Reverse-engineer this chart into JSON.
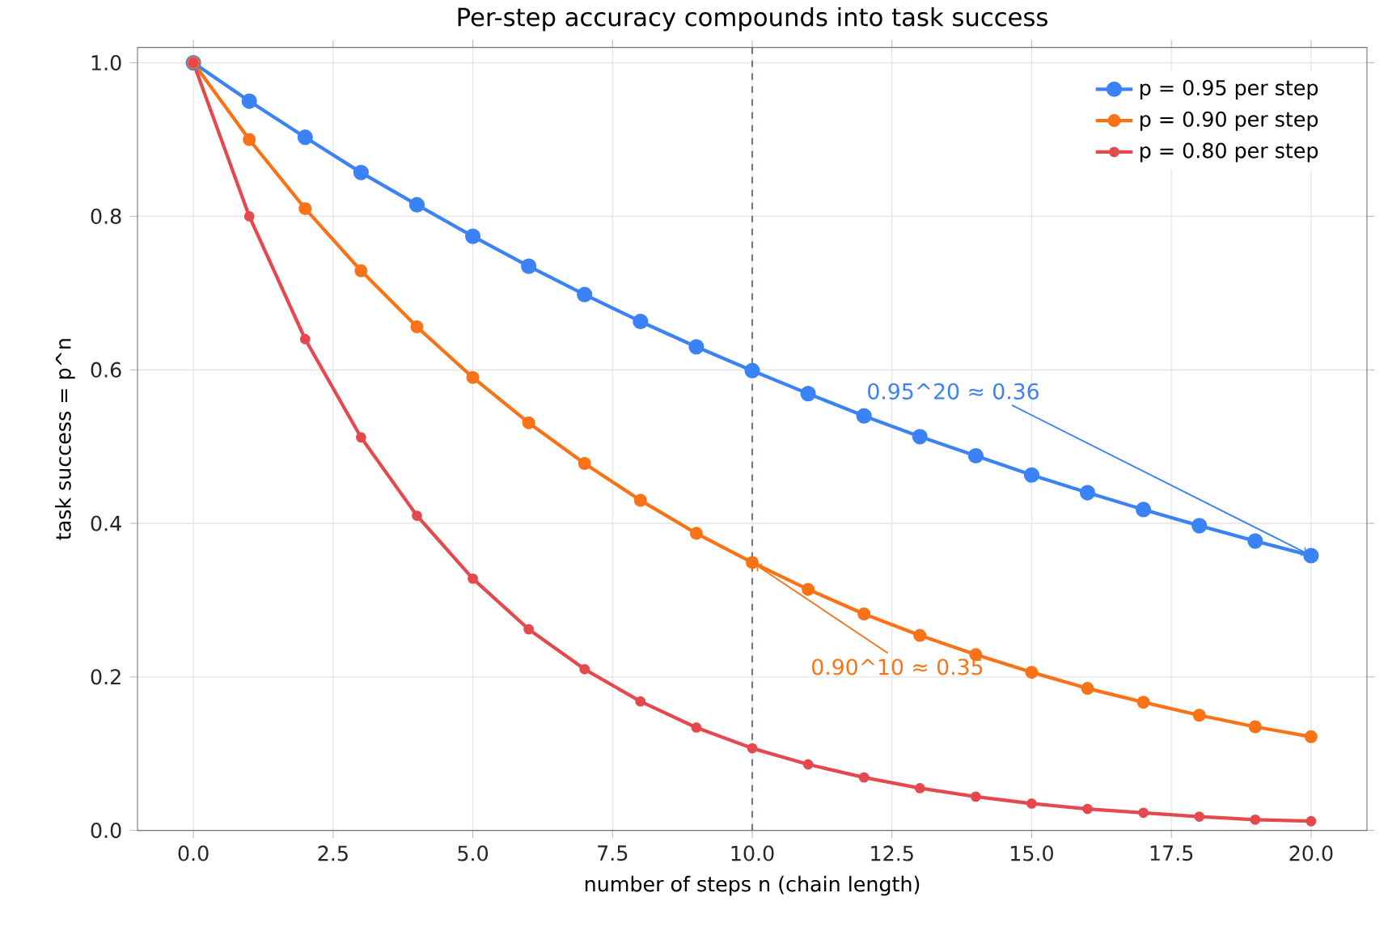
{
  "chart_data": {
    "type": "line",
    "title": "Per-step accuracy compounds into task success",
    "xlabel": "number of steps n (chain length)",
    "ylabel": "task success  =  p^n",
    "x": [
      0,
      1,
      2,
      3,
      4,
      5,
      6,
      7,
      8,
      9,
      10,
      11,
      12,
      13,
      14,
      15,
      16,
      17,
      18,
      19,
      20
    ],
    "series": [
      {
        "name": "p = 0.95 per step",
        "color": "#3b82f6",
        "values": [
          1,
          0.95,
          0.903,
          0.857,
          0.815,
          0.774,
          0.735,
          0.698,
          0.663,
          0.63,
          0.599,
          0.569,
          0.54,
          0.513,
          0.488,
          0.463,
          0.44,
          0.418,
          0.397,
          0.377,
          0.358
        ]
      },
      {
        "name": "p = 0.90 per step",
        "color": "#f97316",
        "values": [
          1,
          0.9,
          0.81,
          0.729,
          0.656,
          0.59,
          0.531,
          0.478,
          0.43,
          0.387,
          0.349,
          0.314,
          0.282,
          0.254,
          0.229,
          0.206,
          0.185,
          0.167,
          0.15,
          0.135,
          0.122
        ]
      },
      {
        "name": "p = 0.80 per step",
        "color": "#e5484d",
        "values": [
          1,
          0.8,
          0.64,
          0.512,
          0.41,
          0.328,
          0.262,
          0.21,
          0.168,
          0.134,
          0.107,
          0.086,
          0.069,
          0.055,
          0.044,
          0.035,
          0.028,
          0.023,
          0.018,
          0.014,
          0.012
        ]
      }
    ],
    "annotations": [
      {
        "text": "0.95^20 ≈ 0.36",
        "x": 20,
        "y": 0.358
      },
      {
        "text": "0.90^10 ≈ 0.35",
        "x": 10,
        "y": 0.349
      }
    ],
    "ref_lines": [
      {
        "axis": "x",
        "value": 10,
        "color": "#6b7280",
        "line_style": "dashed"
      }
    ],
    "xlim": [
      -1,
      21
    ],
    "ylim": [
      0,
      1.02
    ],
    "xticks": [
      {
        "value": 0,
        "label": "0.0"
      },
      {
        "value": 2.5,
        "label": "2.5"
      },
      {
        "value": 5,
        "label": "5.0"
      },
      {
        "value": 7.5,
        "label": "7.5"
      },
      {
        "value": 10,
        "label": "10.0"
      },
      {
        "value": 12.5,
        "label": "12.5"
      },
      {
        "value": 15,
        "label": "15.0"
      },
      {
        "value": 17.5,
        "label": "17.5"
      },
      {
        "value": 20,
        "label": "20.0"
      }
    ],
    "yticks": [
      {
        "value": 0,
        "label": "0.0"
      },
      {
        "value": 0.2,
        "label": "0.2"
      },
      {
        "value": 0.4,
        "label": "0.4"
      },
      {
        "value": 0.6,
        "label": "0.6"
      },
      {
        "value": 0.8,
        "label": "0.8"
      },
      {
        "value": 1,
        "label": "1.0"
      }
    ],
    "grid": true,
    "legend": "top right",
    "marker": "circle",
    "line_style": "solid"
  }
}
